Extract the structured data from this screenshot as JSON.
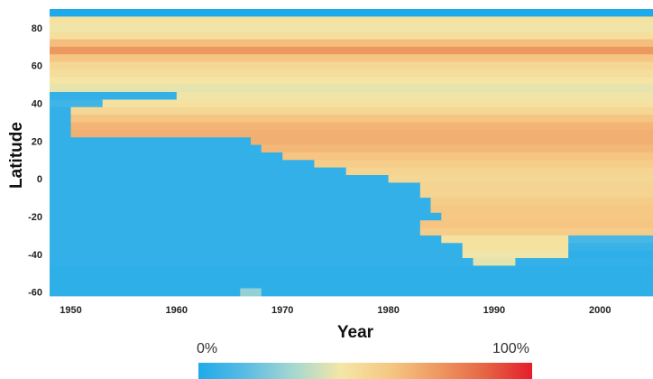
{
  "chart_data": {
    "type": "heatmap",
    "xlabel": "Year",
    "ylabel": "Latitude",
    "x_ticks": [
      "1950",
      "1960",
      "1970",
      "1980",
      "1990",
      "2000"
    ],
    "y_ticks": [
      "80",
      "60",
      "40",
      "20",
      "0",
      "-20",
      "-40",
      "-60"
    ],
    "x_range": [
      1948,
      2005
    ],
    "y_range": [
      -64,
      90
    ],
    "colorscale": {
      "min_label": "0%",
      "max_label": "100%",
      "colors": [
        "#1eaaea",
        "#5bbce3",
        "#a6d8d0",
        "#f5e6a6",
        "#f5c883",
        "#ee9a62",
        "#e56645",
        "#e41d2b"
      ]
    },
    "description_of_values": "Percentage by year and latitude band",
    "rows": [
      {
        "lat": 88,
        "values": [
          {
            "from": 1948,
            "to": 2005,
            "v": 0.0
          }
        ]
      },
      {
        "lat": 84,
        "values": [
          {
            "from": 1948,
            "to": 2005,
            "v": 0.45
          }
        ]
      },
      {
        "lat": 80,
        "values": [
          {
            "from": 1948,
            "to": 2005,
            "v": 0.42
          }
        ]
      },
      {
        "lat": 76,
        "values": [
          {
            "from": 1948,
            "to": 2005,
            "v": 0.46
          }
        ]
      },
      {
        "lat": 72,
        "values": [
          {
            "from": 1948,
            "to": 2005,
            "v": 0.6
          }
        ]
      },
      {
        "lat": 68,
        "values": [
          {
            "from": 1948,
            "to": 2005,
            "v": 0.72
          }
        ]
      },
      {
        "lat": 64,
        "values": [
          {
            "from": 1948,
            "to": 2005,
            "v": 0.58
          }
        ]
      },
      {
        "lat": 60,
        "values": [
          {
            "from": 1948,
            "to": 2005,
            "v": 0.5
          }
        ]
      },
      {
        "lat": 56,
        "values": [
          {
            "from": 1948,
            "to": 2005,
            "v": 0.47
          }
        ]
      },
      {
        "lat": 52,
        "values": [
          {
            "from": 1948,
            "to": 2005,
            "v": 0.44
          }
        ]
      },
      {
        "lat": 48,
        "values": [
          {
            "from": 1948,
            "to": 2005,
            "v": 0.4
          }
        ]
      },
      {
        "lat": 44,
        "values": [
          {
            "from": 1948,
            "to": 1960,
            "v": 0.05
          },
          {
            "from": 1960,
            "to": 2005,
            "v": 0.42
          }
        ]
      },
      {
        "lat": 40,
        "values": [
          {
            "from": 1948,
            "to": 1953,
            "v": 0.08
          },
          {
            "from": 1953,
            "to": 2005,
            "v": 0.45
          }
        ]
      },
      {
        "lat": 36,
        "values": [
          {
            "from": 1948,
            "to": 1950,
            "v": 0.05
          },
          {
            "from": 1950,
            "to": 2005,
            "v": 0.5
          }
        ]
      },
      {
        "lat": 32,
        "values": [
          {
            "from": 1948,
            "to": 1950,
            "v": 0.05
          },
          {
            "from": 1950,
            "to": 2005,
            "v": 0.58
          }
        ]
      },
      {
        "lat": 28,
        "values": [
          {
            "from": 1948,
            "to": 1950,
            "v": 0.05
          },
          {
            "from": 1950,
            "to": 2005,
            "v": 0.63
          }
        ]
      },
      {
        "lat": 24,
        "values": [
          {
            "from": 1948,
            "to": 1950,
            "v": 0.05
          },
          {
            "from": 1950,
            "to": 2005,
            "v": 0.65
          }
        ]
      },
      {
        "lat": 20,
        "values": [
          {
            "from": 1948,
            "to": 1967,
            "v": 0.05
          },
          {
            "from": 1967,
            "to": 2005,
            "v": 0.65
          }
        ]
      },
      {
        "lat": 16,
        "values": [
          {
            "from": 1948,
            "to": 1968,
            "v": 0.05
          },
          {
            "from": 1968,
            "to": 2005,
            "v": 0.62
          }
        ]
      },
      {
        "lat": 12,
        "values": [
          {
            "from": 1948,
            "to": 1970,
            "v": 0.05
          },
          {
            "from": 1970,
            "to": 2005,
            "v": 0.58
          }
        ]
      },
      {
        "lat": 8,
        "values": [
          {
            "from": 1948,
            "to": 1973,
            "v": 0.05
          },
          {
            "from": 1973,
            "to": 2005,
            "v": 0.55
          }
        ]
      },
      {
        "lat": 4,
        "values": [
          {
            "from": 1948,
            "to": 1976,
            "v": 0.05
          },
          {
            "from": 1976,
            "to": 2005,
            "v": 0.52
          }
        ]
      },
      {
        "lat": 0,
        "values": [
          {
            "from": 1948,
            "to": 1980,
            "v": 0.05
          },
          {
            "from": 1980,
            "to": 2005,
            "v": 0.5
          }
        ]
      },
      {
        "lat": -4,
        "values": [
          {
            "from": 1948,
            "to": 1983,
            "v": 0.05
          },
          {
            "from": 1983,
            "to": 2005,
            "v": 0.52
          }
        ]
      },
      {
        "lat": -8,
        "values": [
          {
            "from": 1948,
            "to": 1983,
            "v": 0.05
          },
          {
            "from": 1983,
            "to": 2005,
            "v": 0.52
          }
        ]
      },
      {
        "lat": -12,
        "values": [
          {
            "from": 1948,
            "to": 1984,
            "v": 0.05
          },
          {
            "from": 1984,
            "to": 2005,
            "v": 0.55
          }
        ]
      },
      {
        "lat": -16,
        "values": [
          {
            "from": 1948,
            "to": 1984,
            "v": 0.05
          },
          {
            "from": 1984,
            "to": 2005,
            "v": 0.57
          }
        ]
      },
      {
        "lat": -20,
        "values": [
          {
            "from": 1948,
            "to": 1985,
            "v": 0.05
          },
          {
            "from": 1985,
            "to": 2005,
            "v": 0.57
          }
        ]
      },
      {
        "lat": -24,
        "values": [
          {
            "from": 1948,
            "to": 1983,
            "v": 0.05
          },
          {
            "from": 1983,
            "to": 2005,
            "v": 0.58
          }
        ]
      },
      {
        "lat": -28,
        "values": [
          {
            "from": 1948,
            "to": 1983,
            "v": 0.05
          },
          {
            "from": 1983,
            "to": 2005,
            "v": 0.55
          }
        ]
      },
      {
        "lat": -32,
        "values": [
          {
            "from": 1948,
            "to": 1985,
            "v": 0.05
          },
          {
            "from": 1985,
            "to": 1997,
            "v": 0.45
          },
          {
            "from": 1997,
            "to": 2005,
            "v": 0.1
          }
        ]
      },
      {
        "lat": -36,
        "values": [
          {
            "from": 1948,
            "to": 1987,
            "v": 0.05
          },
          {
            "from": 1987,
            "to": 1997,
            "v": 0.45
          },
          {
            "from": 1997,
            "to": 2005,
            "v": 0.06
          }
        ]
      },
      {
        "lat": -40,
        "values": [
          {
            "from": 1948,
            "to": 1987,
            "v": 0.05
          },
          {
            "from": 1987,
            "to": 1997,
            "v": 0.42
          },
          {
            "from": 1997,
            "to": 2005,
            "v": 0.04
          }
        ]
      },
      {
        "lat": -44,
        "values": [
          {
            "from": 1948,
            "to": 1988,
            "v": 0.05
          },
          {
            "from": 1988,
            "to": 1992,
            "v": 0.4
          },
          {
            "from": 1992,
            "to": 2005,
            "v": 0.05
          }
        ]
      },
      {
        "lat": -48,
        "values": [
          {
            "from": 1948,
            "to": 2005,
            "v": 0.04
          }
        ]
      },
      {
        "lat": -52,
        "values": [
          {
            "from": 1948,
            "to": 2005,
            "v": 0.04
          }
        ]
      },
      {
        "lat": -56,
        "values": [
          {
            "from": 1948,
            "to": 2005,
            "v": 0.04
          }
        ]
      },
      {
        "lat": -60,
        "values": [
          {
            "from": 1948,
            "to": 1966,
            "v": 0.04
          },
          {
            "from": 1966,
            "to": 1968,
            "v": 0.25
          },
          {
            "from": 1968,
            "to": 2005,
            "v": 0.04
          }
        ]
      }
    ]
  }
}
